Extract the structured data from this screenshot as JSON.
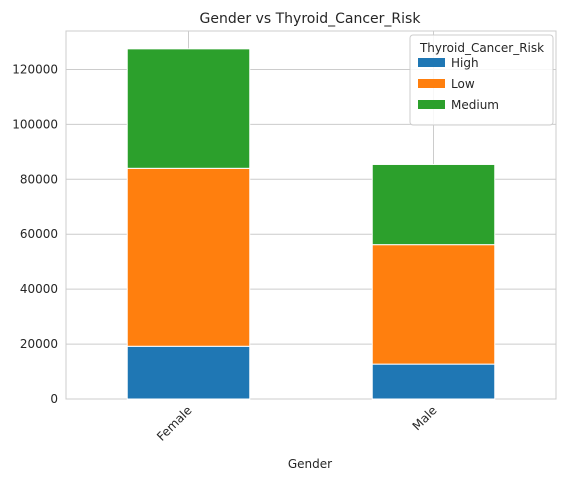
{
  "chart_data": {
    "type": "bar",
    "stacked": true,
    "title": "Gender vs Thyroid_Cancer_Risk",
    "xlabel": "Gender",
    "ylabel": "",
    "categories": [
      "Female",
      "Male"
    ],
    "series": [
      {
        "name": "High",
        "values": [
          19200,
          12700
        ],
        "color": "#1f77b4"
      },
      {
        "name": "Low",
        "values": [
          64800,
          43500
        ],
        "color": "#ff7f0e"
      },
      {
        "name": "Medium",
        "values": [
          43500,
          29200
        ],
        "color": "#2ca02c"
      }
    ],
    "ylim": [
      0,
      134000
    ],
    "yticks": [
      0,
      20000,
      40000,
      60000,
      80000,
      100000,
      120000
    ],
    "ytick_labels": [
      "0",
      "20000",
      "40000",
      "60000",
      "80000",
      "100000",
      "120000"
    ],
    "grid": true,
    "legend": {
      "title": "Thyroid_Cancer_Risk",
      "placement": "top-right"
    }
  }
}
